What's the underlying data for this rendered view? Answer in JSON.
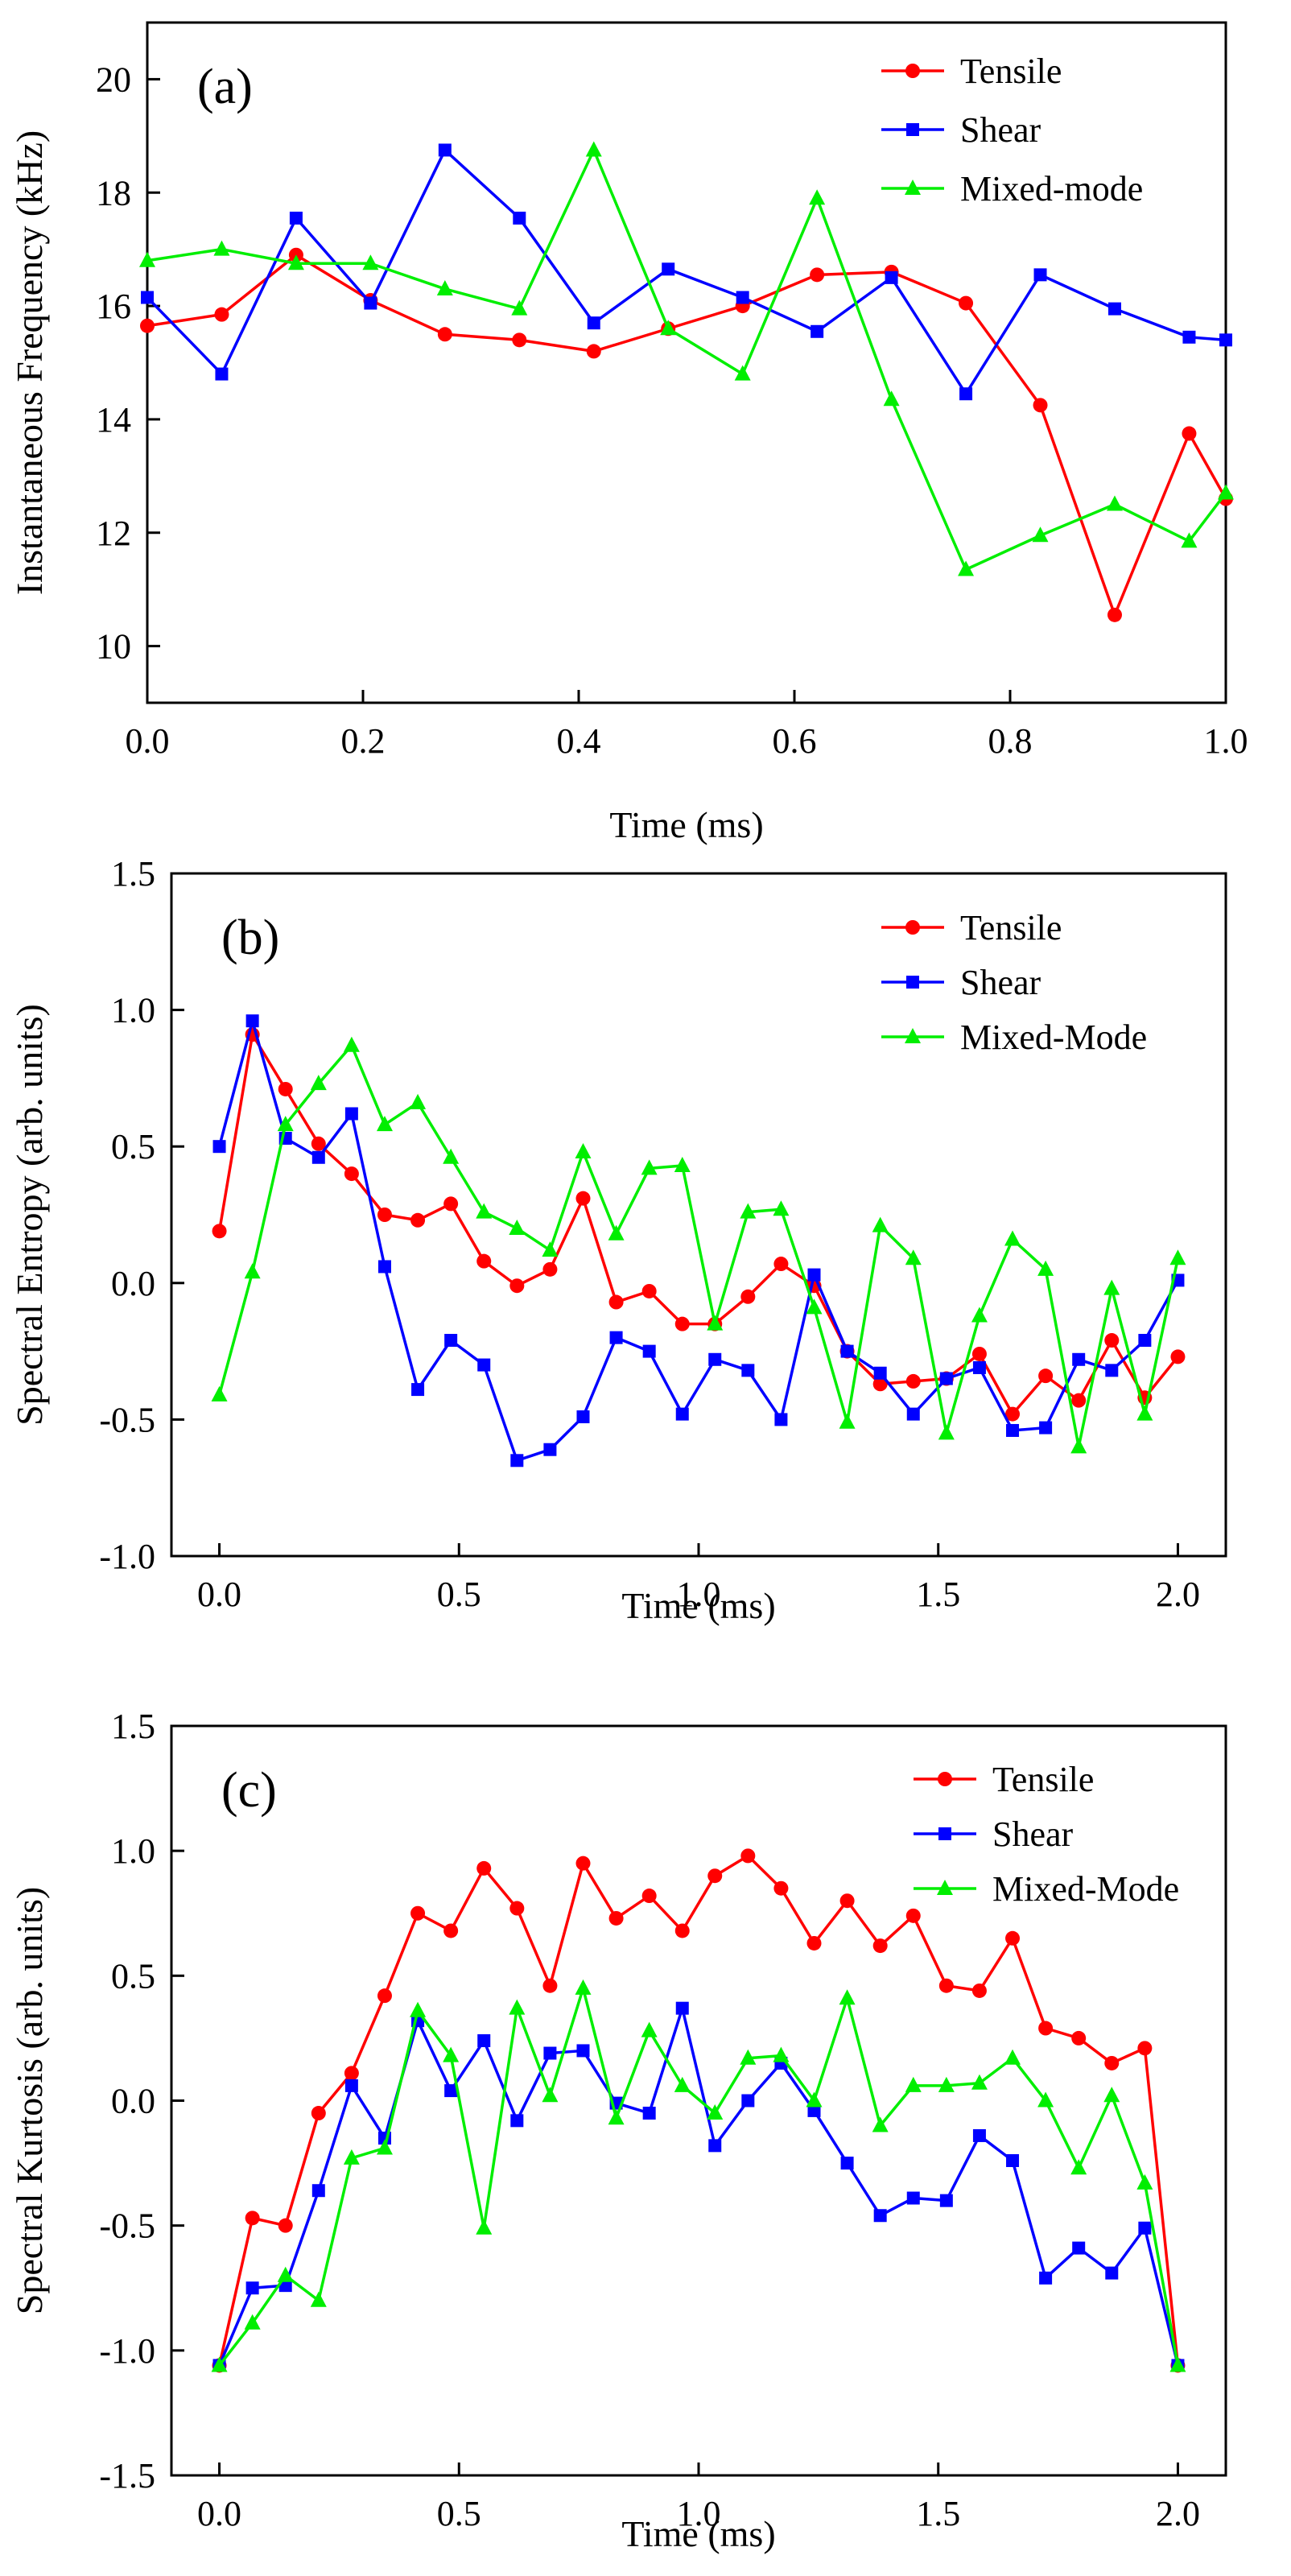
{
  "chart_data": [
    {
      "type": "line",
      "panel_label": "(a)",
      "xlabel": "Time (ms)",
      "ylabel": "Instantaneous Frequency (kHz)",
      "xlim": [
        0,
        1.0
      ],
      "ylim": [
        9,
        21
      ],
      "xticks": [
        0.0,
        0.2,
        0.4,
        0.6,
        0.8,
        1.0
      ],
      "xtick_labels": [
        "0.0",
        "0.2",
        "0.4",
        "0.6",
        "0.8",
        "1.0"
      ],
      "yticks": [
        10,
        12,
        14,
        16,
        18,
        20
      ],
      "ytick_labels": [
        "10",
        "12",
        "14",
        "16",
        "18",
        "20"
      ],
      "legend_position": "top-right",
      "series": [
        {
          "name": "Tensile",
          "color": "#ff0000",
          "marker": "circle",
          "x": [
            0.0,
            0.069,
            0.138,
            0.207,
            0.276,
            0.345,
            0.414,
            0.483,
            0.552,
            0.621,
            0.69,
            0.759,
            0.828,
            0.897,
            0.966,
            1.0
          ],
          "y": [
            15.65,
            15.85,
            16.9,
            16.1,
            15.5,
            15.4,
            15.2,
            15.6,
            16.0,
            16.55,
            16.6,
            16.05,
            14.25,
            10.55,
            13.75,
            12.6
          ]
        },
        {
          "name": "Shear",
          "color": "#0000ff",
          "marker": "square",
          "x": [
            0.0,
            0.069,
            0.138,
            0.207,
            0.276,
            0.345,
            0.414,
            0.483,
            0.552,
            0.621,
            0.69,
            0.759,
            0.828,
            0.897,
            0.966,
            1.0
          ],
          "y": [
            16.15,
            14.8,
            17.55,
            16.05,
            18.75,
            17.55,
            15.7,
            16.65,
            16.15,
            15.55,
            16.5,
            14.45,
            16.55,
            15.95,
            15.45,
            15.4
          ]
        },
        {
          "name": "Mixed-mode",
          "color": "#00ee00",
          "marker": "triangle",
          "x": [
            0.0,
            0.069,
            0.138,
            0.207,
            0.276,
            0.345,
            0.414,
            0.483,
            0.552,
            0.621,
            0.69,
            0.759,
            0.828,
            0.897,
            0.966,
            1.0
          ],
          "y": [
            16.8,
            17.0,
            16.75,
            16.75,
            16.3,
            15.95,
            18.75,
            15.6,
            14.8,
            17.9,
            14.35,
            11.35,
            11.95,
            12.5,
            11.85,
            12.7
          ]
        }
      ]
    },
    {
      "type": "line",
      "panel_label": "(b)",
      "xlabel": "Time (ms)",
      "ylabel": "Spectral Entropy (arb. units)",
      "xlim": [
        -0.1,
        2.1
      ],
      "ylim": [
        -1.0,
        1.5
      ],
      "xticks": [
        0.0,
        0.5,
        1.0,
        1.5,
        2.0
      ],
      "xtick_labels": [
        "0.0",
        "0.5",
        "1.0",
        "1.5",
        "2.0"
      ],
      "yticks": [
        -1.0,
        -0.5,
        0.0,
        0.5,
        1.0,
        1.5
      ],
      "ytick_labels": [
        "-1.0",
        "-0.5",
        "0.0",
        "0.5",
        "1.0",
        "1.5"
      ],
      "legend_position": "top-right",
      "series": [
        {
          "name": "Tensile",
          "color": "#ff0000",
          "marker": "circle",
          "x": [
            0.0,
            0.069,
            0.138,
            0.207,
            0.276,
            0.345,
            0.414,
            0.483,
            0.552,
            0.621,
            0.69,
            0.759,
            0.828,
            0.897,
            0.966,
            1.034,
            1.103,
            1.172,
            1.241,
            1.31,
            1.379,
            1.448,
            1.517,
            1.586,
            1.655,
            1.724,
            1.793,
            1.862,
            1.931,
            2.0
          ],
          "y": [
            0.19,
            0.91,
            0.71,
            0.51,
            0.4,
            0.25,
            0.23,
            0.29,
            0.08,
            -0.01,
            0.05,
            0.31,
            -0.07,
            -0.03,
            -0.15,
            -0.15,
            -0.05,
            0.07,
            -0.01,
            -0.25,
            -0.37,
            -0.36,
            -0.35,
            -0.26,
            -0.48,
            -0.34,
            -0.43,
            -0.21,
            -0.42,
            -0.27
          ]
        },
        {
          "name": "Shear",
          "color": "#0000ff",
          "marker": "square",
          "x": [
            0.0,
            0.069,
            0.138,
            0.207,
            0.276,
            0.345,
            0.414,
            0.483,
            0.552,
            0.621,
            0.69,
            0.759,
            0.828,
            0.897,
            0.966,
            1.034,
            1.103,
            1.172,
            1.241,
            1.31,
            1.379,
            1.448,
            1.517,
            1.586,
            1.655,
            1.724,
            1.793,
            1.862,
            1.931,
            2.0
          ],
          "y": [
            0.5,
            0.96,
            0.53,
            0.46,
            0.62,
            0.06,
            -0.39,
            -0.21,
            -0.3,
            -0.65,
            -0.61,
            -0.49,
            -0.2,
            -0.25,
            -0.48,
            -0.28,
            -0.32,
            -0.5,
            0.03,
            -0.25,
            -0.33,
            -0.48,
            -0.35,
            -0.31,
            -0.54,
            -0.53,
            -0.28,
            -0.32,
            -0.21,
            0.01
          ]
        },
        {
          "name": "Mixed-Mode",
          "color": "#00ee00",
          "marker": "triangle",
          "x": [
            0.0,
            0.069,
            0.138,
            0.207,
            0.276,
            0.345,
            0.414,
            0.483,
            0.552,
            0.621,
            0.69,
            0.759,
            0.828,
            0.897,
            0.966,
            1.034,
            1.103,
            1.172,
            1.241,
            1.31,
            1.379,
            1.448,
            1.517,
            1.586,
            1.655,
            1.724,
            1.793,
            1.862,
            1.931,
            2.0
          ],
          "y": [
            -0.41,
            0.04,
            0.58,
            0.73,
            0.87,
            0.58,
            0.66,
            0.46,
            0.26,
            0.2,
            0.12,
            0.48,
            0.18,
            0.42,
            0.43,
            -0.15,
            0.26,
            0.27,
            -0.09,
            -0.51,
            0.21,
            0.09,
            -0.55,
            -0.12,
            0.16,
            0.05,
            -0.6,
            -0.02,
            -0.48,
            0.09
          ]
        }
      ]
    },
    {
      "type": "line",
      "panel_label": "(c)",
      "xlabel": "Time (ms)",
      "ylabel": "Spectral Kurtosis (arb. units)",
      "xlim": [
        -0.1,
        2.1
      ],
      "ylim": [
        -1.5,
        1.5
      ],
      "xticks": [
        0.0,
        0.5,
        1.0,
        1.5,
        2.0
      ],
      "xtick_labels": [
        "0.0",
        "0.5",
        "1.0",
        "1.5",
        "2.0"
      ],
      "yticks": [
        -1.5,
        -1.0,
        -0.5,
        0.0,
        0.5,
        1.0,
        1.5
      ],
      "ytick_labels": [
        "-1.5",
        "-1.0",
        "-0.5",
        "0.0",
        "0.5",
        "1.0",
        "1.5"
      ],
      "legend_position": "top-right",
      "series": [
        {
          "name": "Tensile",
          "color": "#ff0000",
          "marker": "circle",
          "x": [
            0.0,
            0.069,
            0.138,
            0.207,
            0.276,
            0.345,
            0.414,
            0.483,
            0.552,
            0.621,
            0.69,
            0.759,
            0.828,
            0.897,
            0.966,
            1.034,
            1.103,
            1.172,
            1.241,
            1.31,
            1.379,
            1.448,
            1.517,
            1.586,
            1.655,
            1.724,
            1.793,
            1.862,
            1.931,
            2.0
          ],
          "y": [
            -1.06,
            -0.47,
            -0.5,
            -0.05,
            0.11,
            0.42,
            0.75,
            0.68,
            0.93,
            0.77,
            0.46,
            0.95,
            0.73,
            0.82,
            0.68,
            0.9,
            0.98,
            0.85,
            0.63,
            0.8,
            0.62,
            0.74,
            0.46,
            0.44,
            0.65,
            0.29,
            0.25,
            0.15,
            0.21,
            -1.06
          ]
        },
        {
          "name": "Shear",
          "color": "#0000ff",
          "marker": "square",
          "x": [
            0.0,
            0.069,
            0.138,
            0.207,
            0.276,
            0.345,
            0.414,
            0.483,
            0.552,
            0.621,
            0.69,
            0.759,
            0.828,
            0.897,
            0.966,
            1.034,
            1.103,
            1.172,
            1.241,
            1.31,
            1.379,
            1.448,
            1.517,
            1.586,
            1.655,
            1.724,
            1.793,
            1.862,
            1.931,
            2.0
          ],
          "y": [
            -1.06,
            -0.75,
            -0.74,
            -0.36,
            0.06,
            -0.15,
            0.32,
            0.04,
            0.24,
            -0.08,
            0.19,
            0.2,
            -0.01,
            -0.05,
            0.37,
            -0.18,
            0.0,
            0.15,
            -0.04,
            -0.25,
            -0.46,
            -0.39,
            -0.4,
            -0.14,
            -0.24,
            -0.71,
            -0.59,
            -0.69,
            -0.51,
            -1.06
          ]
        },
        {
          "name": "Mixed-Mode",
          "color": "#00ee00",
          "marker": "triangle",
          "x": [
            0.0,
            0.069,
            0.138,
            0.207,
            0.276,
            0.345,
            0.414,
            0.483,
            0.552,
            0.621,
            0.69,
            0.759,
            0.828,
            0.897,
            0.966,
            1.034,
            1.103,
            1.172,
            1.241,
            1.31,
            1.379,
            1.448,
            1.517,
            1.586,
            1.655,
            1.724,
            1.793,
            1.862,
            1.931,
            2.0
          ],
          "y": [
            -1.06,
            -0.89,
            -0.7,
            -0.8,
            -0.23,
            -0.19,
            0.36,
            0.18,
            -0.51,
            0.37,
            0.02,
            0.45,
            -0.07,
            0.28,
            0.06,
            -0.05,
            0.17,
            0.18,
            0.0,
            0.41,
            -0.1,
            0.06,
            0.06,
            0.07,
            0.17,
            0.0,
            -0.27,
            0.02,
            -0.33,
            -1.06
          ]
        }
      ]
    }
  ]
}
